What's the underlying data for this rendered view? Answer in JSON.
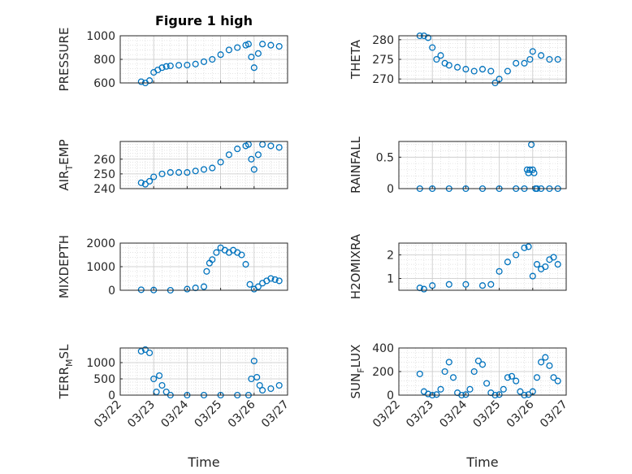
{
  "figure": {
    "title": "Figure 1 high",
    "xlabel": "Time",
    "marker_color": "#0072BD",
    "grid": true,
    "xticks": [
      "03/22",
      "03/23",
      "03/24",
      "03/25",
      "03/26",
      "03/27"
    ]
  },
  "chart_data": [
    {
      "type": "scatter",
      "ylabel": "PRESSURE",
      "ylim": [
        600,
        1000
      ],
      "yticks": [
        "600",
        "800",
        "1000"
      ],
      "x": [
        "03/22 15:00",
        "03/22 18:00",
        "03/22 21:00",
        "03/23 00:00",
        "03/23 03:00",
        "03/23 06:00",
        "03/23 09:00",
        "03/23 12:00",
        "03/23 18:00",
        "03/24 00:00",
        "03/24 06:00",
        "03/24 12:00",
        "03/24 18:00",
        "03/25 00:00",
        "03/25 06:00",
        "03/25 12:00",
        "03/25 18:00",
        "03/25 20:00",
        "03/25 22:00",
        "03/26 00:00",
        "03/26 03:00",
        "03/26 06:00",
        "03/26 12:00",
        "03/26 18:00"
      ],
      "y": [
        610,
        600,
        620,
        690,
        710,
        730,
        740,
        745,
        750,
        752,
        760,
        780,
        800,
        840,
        880,
        900,
        920,
        930,
        820,
        730,
        850,
        930,
        920,
        910
      ]
    },
    {
      "type": "scatter",
      "ylabel": "THETA",
      "ylim": [
        269,
        281
      ],
      "yticks": [
        "270",
        "275",
        "280"
      ],
      "x": [
        "03/22 15:00",
        "03/22 18:00",
        "03/22 21:00",
        "03/23 00:00",
        "03/23 03:00",
        "03/23 06:00",
        "03/23 09:00",
        "03/23 12:00",
        "03/23 18:00",
        "03/24 00:00",
        "03/24 06:00",
        "03/24 12:00",
        "03/24 18:00",
        "03/24 21:00",
        "03/25 00:00",
        "03/25 06:00",
        "03/25 12:00",
        "03/25 18:00",
        "03/25 22:00",
        "03/26 00:00",
        "03/26 06:00",
        "03/26 12:00",
        "03/26 18:00"
      ],
      "y": [
        281,
        281,
        280.5,
        278,
        275,
        276,
        274,
        273.5,
        273,
        272.5,
        272,
        272.5,
        272,
        269,
        270,
        272,
        274,
        274,
        275,
        277,
        276,
        275,
        275
      ]
    },
    {
      "type": "scatter",
      "ylabel": "AIR_TEMP",
      "ylim": [
        240,
        272
      ],
      "yticks": [
        "240",
        "250",
        "260"
      ],
      "x": [
        "03/22 15:00",
        "03/22 18:00",
        "03/22 21:00",
        "03/23 00:00",
        "03/23 06:00",
        "03/23 12:00",
        "03/23 18:00",
        "03/24 00:00",
        "03/24 06:00",
        "03/24 12:00",
        "03/24 18:00",
        "03/25 00:00",
        "03/25 06:00",
        "03/25 12:00",
        "03/25 18:00",
        "03/25 20:00",
        "03/25 22:00",
        "03/26 00:00",
        "03/26 03:00",
        "03/26 06:00",
        "03/26 12:00",
        "03/26 18:00"
      ],
      "y": [
        244,
        243,
        245,
        248,
        250,
        251,
        251,
        251,
        252,
        253,
        254,
        258,
        263,
        267,
        269,
        270,
        260,
        253,
        263,
        270,
        269,
        268
      ]
    },
    {
      "type": "scatter",
      "ylabel": "RAINFALL",
      "ylim": [
        0,
        0.75
      ],
      "yticks": [
        "0",
        "0.5"
      ],
      "x": [
        "03/22 15:00",
        "03/23 00:00",
        "03/23 12:00",
        "03/24 00:00",
        "03/24 12:00",
        "03/25 00:00",
        "03/25 12:00",
        "03/25 18:00",
        "03/25 20:00",
        "03/25 21:00",
        "03/25 22:00",
        "03/25 23:00",
        "03/26 00:00",
        "03/26 01:00",
        "03/26 02:00",
        "03/26 03:00",
        "03/26 06:00",
        "03/26 12:00",
        "03/26 18:00"
      ],
      "y": [
        0,
        0,
        0,
        0,
        0,
        0,
        0,
        0,
        0.3,
        0.25,
        0.3,
        0.7,
        0.3,
        0.25,
        0,
        0,
        0,
        0,
        0
      ]
    },
    {
      "type": "scatter",
      "ylabel": "MIXDEPTH",
      "ylim": [
        0,
        2000
      ],
      "yticks": [
        "0",
        "1000",
        "2000"
      ],
      "x": [
        "03/22 15:00",
        "03/23 00:00",
        "03/23 12:00",
        "03/24 00:00",
        "03/24 06:00",
        "03/24 12:00",
        "03/24 14:00",
        "03/24 16:00",
        "03/24 18:00",
        "03/24 21:00",
        "03/25 00:00",
        "03/25 03:00",
        "03/25 06:00",
        "03/25 09:00",
        "03/25 12:00",
        "03/25 15:00",
        "03/25 18:00",
        "03/25 21:00",
        "03/26 00:00",
        "03/26 03:00",
        "03/26 06:00",
        "03/26 09:00",
        "03/26 12:00",
        "03/26 15:00",
        "03/26 18:00"
      ],
      "y": [
        20,
        10,
        0,
        50,
        100,
        150,
        800,
        1150,
        1300,
        1600,
        1800,
        1700,
        1600,
        1700,
        1600,
        1500,
        1100,
        250,
        50,
        150,
        300,
        400,
        500,
        450,
        400
      ]
    },
    {
      "type": "scatter",
      "ylabel": "H2OMIXRA",
      "ylim": [
        0.5,
        2.5
      ],
      "yticks": [
        "1",
        "2"
      ],
      "x": [
        "03/22 15:00",
        "03/22 18:00",
        "03/23 00:00",
        "03/23 12:00",
        "03/24 00:00",
        "03/24 12:00",
        "03/24 18:00",
        "03/25 00:00",
        "03/25 06:00",
        "03/25 12:00",
        "03/25 18:00",
        "03/25 21:00",
        "03/26 00:00",
        "03/26 03:00",
        "03/26 06:00",
        "03/26 09:00",
        "03/26 12:00",
        "03/26 15:00",
        "03/26 18:00"
      ],
      "y": [
        0.6,
        0.55,
        0.7,
        0.75,
        0.75,
        0.7,
        0.75,
        1.3,
        1.7,
        2.0,
        2.3,
        2.35,
        1.1,
        1.6,
        1.4,
        1.5,
        1.8,
        1.9,
        1.6
      ]
    },
    {
      "type": "scatter",
      "ylabel": "TERR_MSL",
      "ylim": [
        0,
        1450
      ],
      "yticks": [
        "0",
        "500",
        "1000"
      ],
      "x": [
        "03/22 15:00",
        "03/22 18:00",
        "03/22 21:00",
        "03/23 00:00",
        "03/23 02:00",
        "03/23 04:00",
        "03/23 06:00",
        "03/23 09:00",
        "03/23 12:00",
        "03/24 00:00",
        "03/24 12:00",
        "03/25 00:00",
        "03/25 12:00",
        "03/25 20:00",
        "03/25 22:00",
        "03/26 00:00",
        "03/26 02:00",
        "03/26 04:00",
        "03/26 06:00",
        "03/26 12:00",
        "03/26 18:00"
      ],
      "y": [
        1350,
        1400,
        1300,
        500,
        100,
        600,
        300,
        100,
        0,
        0,
        0,
        0,
        0,
        0,
        500,
        1050,
        550,
        300,
        150,
        200,
        300
      ]
    },
    {
      "type": "scatter",
      "ylabel": "SUN_FLUX",
      "ylim": [
        0,
        400
      ],
      "yticks": [
        "0",
        "200",
        "400"
      ],
      "x": [
        "03/22 15:00",
        "03/22 18:00",
        "03/22 21:00",
        "03/23 00:00",
        "03/23 03:00",
        "03/23 06:00",
        "03/23 09:00",
        "03/23 12:00",
        "03/23 15:00",
        "03/23 18:00",
        "03/23 21:00",
        "03/24 00:00",
        "03/24 03:00",
        "03/24 06:00",
        "03/24 09:00",
        "03/24 12:00",
        "03/24 15:00",
        "03/24 18:00",
        "03/24 21:00",
        "03/25 00:00",
        "03/25 03:00",
        "03/25 06:00",
        "03/25 09:00",
        "03/25 12:00",
        "03/25 15:00",
        "03/25 18:00",
        "03/25 21:00",
        "03/26 00:00",
        "03/26 03:00",
        "03/26 06:00",
        "03/26 09:00",
        "03/26 12:00",
        "03/26 15:00",
        "03/26 18:00"
      ],
      "y": [
        180,
        30,
        10,
        0,
        5,
        50,
        200,
        280,
        150,
        20,
        0,
        5,
        50,
        200,
        290,
        260,
        100,
        20,
        0,
        5,
        50,
        150,
        160,
        120,
        30,
        0,
        5,
        30,
        150,
        280,
        320,
        250,
        150,
        120
      ]
    }
  ]
}
